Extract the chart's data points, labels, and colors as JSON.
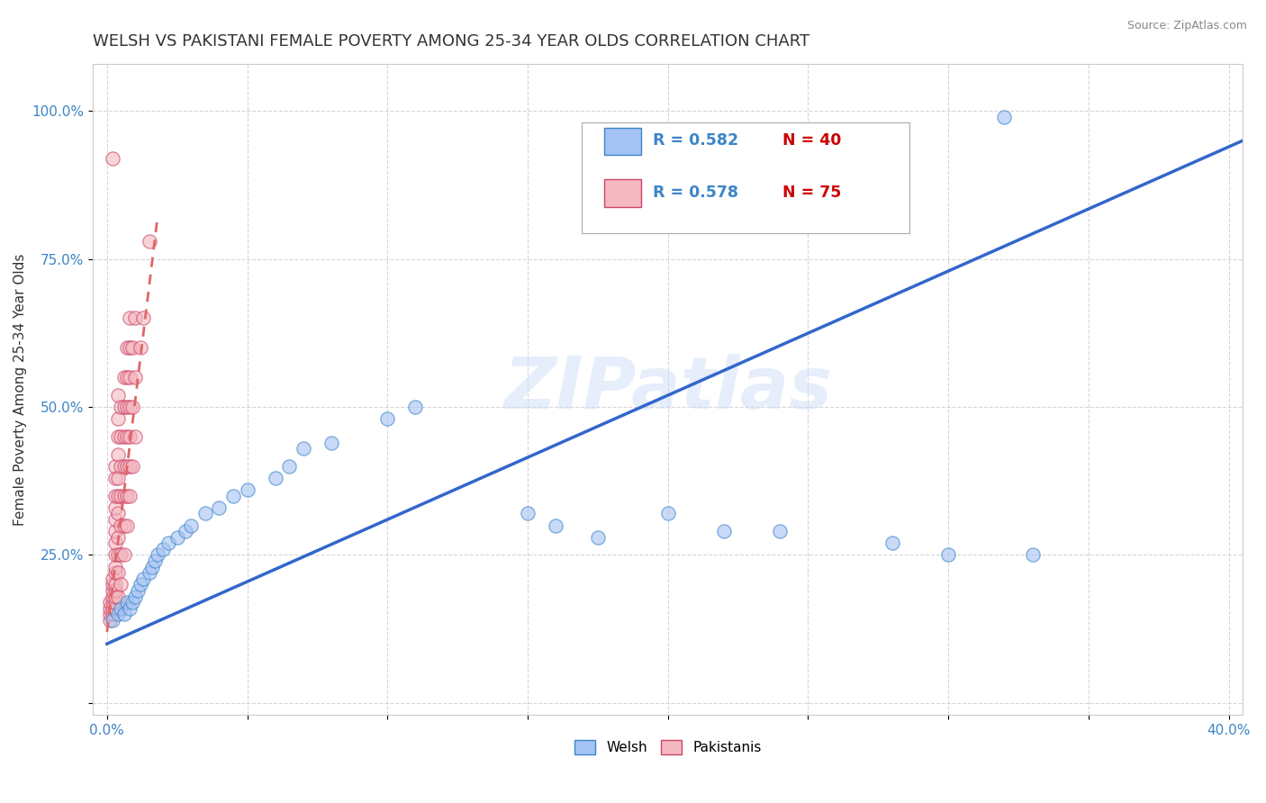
{
  "title": "WELSH VS PAKISTANI FEMALE POVERTY AMONG 25-34 YEAR OLDS CORRELATION CHART",
  "source": "Source: ZipAtlas.com",
  "ylabel": "Female Poverty Among 25-34 Year Olds",
  "xlim": [
    -0.005,
    0.405
  ],
  "ylim": [
    -0.02,
    1.08
  ],
  "xticks": [
    0.0,
    0.05,
    0.1,
    0.15,
    0.2,
    0.25,
    0.3,
    0.35,
    0.4
  ],
  "xticklabels": [
    "0.0%",
    "",
    "",
    "",
    "",
    "",
    "",
    "",
    "40.0%"
  ],
  "yticks": [
    0.0,
    0.25,
    0.5,
    0.75,
    1.0
  ],
  "yticklabels": [
    "",
    "25.0%",
    "50.0%",
    "75.0%",
    "100.0%"
  ],
  "blue_color": "#a4c2f4",
  "pink_color": "#f4b8c1",
  "blue_edge_color": "#3d85c8",
  "pink_edge_color": "#cc4466",
  "blue_line_color": "#3366cc",
  "pink_line_color": "#e06666",
  "watermark": "ZIPatlas",
  "legend_r1": "R = 0.582",
  "legend_n1": "N = 40",
  "legend_r2": "R = 0.578",
  "legend_n2": "N = 75",
  "welsh_scatter": [
    [
      0.002,
      0.14
    ],
    [
      0.004,
      0.15
    ],
    [
      0.005,
      0.16
    ],
    [
      0.006,
      0.15
    ],
    [
      0.007,
      0.17
    ],
    [
      0.008,
      0.16
    ],
    [
      0.009,
      0.17
    ],
    [
      0.01,
      0.18
    ],
    [
      0.011,
      0.19
    ],
    [
      0.012,
      0.2
    ],
    [
      0.013,
      0.21
    ],
    [
      0.015,
      0.22
    ],
    [
      0.016,
      0.23
    ],
    [
      0.017,
      0.24
    ],
    [
      0.018,
      0.25
    ],
    [
      0.02,
      0.26
    ],
    [
      0.022,
      0.27
    ],
    [
      0.025,
      0.28
    ],
    [
      0.028,
      0.29
    ],
    [
      0.03,
      0.3
    ],
    [
      0.035,
      0.32
    ],
    [
      0.04,
      0.33
    ],
    [
      0.045,
      0.35
    ],
    [
      0.05,
      0.36
    ],
    [
      0.06,
      0.38
    ],
    [
      0.065,
      0.4
    ],
    [
      0.07,
      0.43
    ],
    [
      0.08,
      0.44
    ],
    [
      0.1,
      0.48
    ],
    [
      0.11,
      0.5
    ],
    [
      0.15,
      0.32
    ],
    [
      0.16,
      0.3
    ],
    [
      0.175,
      0.28
    ],
    [
      0.2,
      0.32
    ],
    [
      0.22,
      0.29
    ],
    [
      0.24,
      0.29
    ],
    [
      0.28,
      0.27
    ],
    [
      0.3,
      0.25
    ],
    [
      0.33,
      0.25
    ],
    [
      0.32,
      0.99
    ]
  ],
  "pakistani_scatter": [
    [
      0.001,
      0.14
    ],
    [
      0.001,
      0.15
    ],
    [
      0.001,
      0.16
    ],
    [
      0.001,
      0.17
    ],
    [
      0.002,
      0.15
    ],
    [
      0.002,
      0.16
    ],
    [
      0.002,
      0.17
    ],
    [
      0.002,
      0.18
    ],
    [
      0.002,
      0.19
    ],
    [
      0.002,
      0.2
    ],
    [
      0.002,
      0.21
    ],
    [
      0.003,
      0.16
    ],
    [
      0.003,
      0.17
    ],
    [
      0.003,
      0.18
    ],
    [
      0.003,
      0.19
    ],
    [
      0.003,
      0.2
    ],
    [
      0.003,
      0.22
    ],
    [
      0.003,
      0.23
    ],
    [
      0.003,
      0.25
    ],
    [
      0.003,
      0.27
    ],
    [
      0.003,
      0.29
    ],
    [
      0.003,
      0.31
    ],
    [
      0.003,
      0.33
    ],
    [
      0.003,
      0.35
    ],
    [
      0.003,
      0.38
    ],
    [
      0.003,
      0.4
    ],
    [
      0.004,
      0.18
    ],
    [
      0.004,
      0.22
    ],
    [
      0.004,
      0.25
    ],
    [
      0.004,
      0.28
    ],
    [
      0.004,
      0.32
    ],
    [
      0.004,
      0.35
    ],
    [
      0.004,
      0.38
    ],
    [
      0.004,
      0.42
    ],
    [
      0.004,
      0.45
    ],
    [
      0.004,
      0.48
    ],
    [
      0.004,
      0.52
    ],
    [
      0.005,
      0.2
    ],
    [
      0.005,
      0.25
    ],
    [
      0.005,
      0.3
    ],
    [
      0.005,
      0.35
    ],
    [
      0.005,
      0.4
    ],
    [
      0.005,
      0.45
    ],
    [
      0.005,
      0.5
    ],
    [
      0.006,
      0.25
    ],
    [
      0.006,
      0.3
    ],
    [
      0.006,
      0.35
    ],
    [
      0.006,
      0.4
    ],
    [
      0.006,
      0.45
    ],
    [
      0.006,
      0.5
    ],
    [
      0.006,
      0.55
    ],
    [
      0.007,
      0.3
    ],
    [
      0.007,
      0.35
    ],
    [
      0.007,
      0.4
    ],
    [
      0.007,
      0.45
    ],
    [
      0.007,
      0.5
    ],
    [
      0.007,
      0.55
    ],
    [
      0.007,
      0.6
    ],
    [
      0.008,
      0.35
    ],
    [
      0.008,
      0.4
    ],
    [
      0.008,
      0.45
    ],
    [
      0.008,
      0.5
    ],
    [
      0.008,
      0.55
    ],
    [
      0.008,
      0.6
    ],
    [
      0.008,
      0.65
    ],
    [
      0.009,
      0.4
    ],
    [
      0.009,
      0.5
    ],
    [
      0.009,
      0.6
    ],
    [
      0.01,
      0.45
    ],
    [
      0.01,
      0.55
    ],
    [
      0.01,
      0.65
    ],
    [
      0.012,
      0.6
    ],
    [
      0.013,
      0.65
    ],
    [
      0.015,
      0.78
    ],
    [
      0.002,
      0.92
    ]
  ],
  "blue_line_x": [
    0.0,
    0.405
  ],
  "blue_line_y": [
    0.1,
    0.95
  ],
  "pink_line_x": [
    0.0,
    0.018
  ],
  "pink_line_y": [
    0.12,
    0.82
  ],
  "title_fontsize": 13,
  "axis_label_fontsize": 11,
  "tick_fontsize": 11
}
